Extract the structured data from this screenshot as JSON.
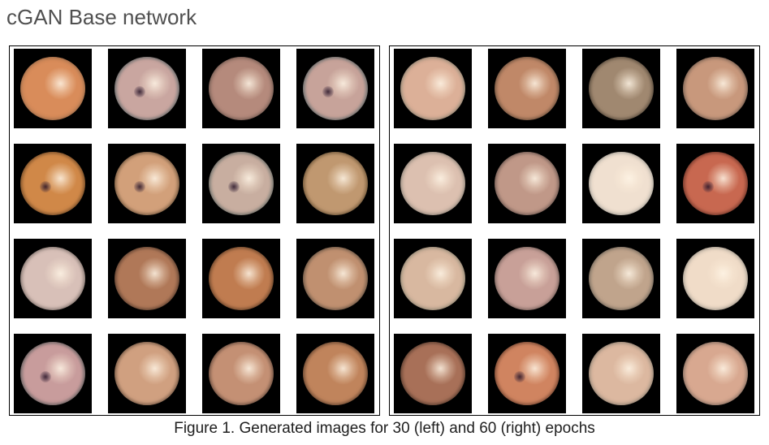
{
  "heading": "cGAN Base network",
  "caption": "Figure 1. Generated images for 30 (left) and 60 (right) epochs",
  "panels": [
    {
      "id": "left",
      "images": [
        {
          "tone": "#d98c5a",
          "rim": "#e0a070",
          "dark": false
        },
        {
          "tone": "#c9a6a0",
          "rim": "#6d8a8e",
          "dark": true
        },
        {
          "tone": "#b58a7c",
          "rim": "#9a7c70",
          "dark": false
        },
        {
          "tone": "#c7a39a",
          "rim": "#6b8e93",
          "dark": true
        },
        {
          "tone": "#d08848",
          "rim": "#8a5a30",
          "dark": true
        },
        {
          "tone": "#d2a07a",
          "rim": "#8a6a48",
          "dark": true
        },
        {
          "tone": "#c8aea0",
          "rim": "#7a8e8a",
          "dark": true
        },
        {
          "tone": "#c09870",
          "rim": "#8a6a40",
          "dark": false
        },
        {
          "tone": "#d8c0b8",
          "rim": "#a09088",
          "dark": false
        },
        {
          "tone": "#b07858",
          "rim": "#6a4a38",
          "dark": false
        },
        {
          "tone": "#c07c50",
          "rim": "#7a5030",
          "dark": false
        },
        {
          "tone": "#c09070",
          "rim": "#7a6a58",
          "dark": false
        },
        {
          "tone": "#c89c9c",
          "rim": "#6a7a7a",
          "dark": true
        },
        {
          "tone": "#d0a080",
          "rim": "#8a6850",
          "dark": false
        },
        {
          "tone": "#c49074",
          "rim": "#7a5a4a",
          "dark": false
        },
        {
          "tone": "#c0845c",
          "rim": "#7a5238",
          "dark": false
        }
      ]
    },
    {
      "id": "right",
      "images": [
        {
          "tone": "#dcb098",
          "rim": "#c0c0a8",
          "dark": false
        },
        {
          "tone": "#c08868",
          "rim": "#8a6a50",
          "dark": false
        },
        {
          "tone": "#a08870",
          "rim": "#6a5a48",
          "dark": false
        },
        {
          "tone": "#c8987c",
          "rim": "#9a8070",
          "dark": false
        },
        {
          "tone": "#dcc0b0",
          "rim": "#c8c0b0",
          "dark": false
        },
        {
          "tone": "#c09888",
          "rim": "#8a7068",
          "dark": false
        },
        {
          "tone": "#f0e0d0",
          "rim": "#f0ece0",
          "dark": false
        },
        {
          "tone": "#c86850",
          "rim": "#8a4030",
          "dark": true
        },
        {
          "tone": "#d8b8a0",
          "rim": "#c8c4a8",
          "dark": false
        },
        {
          "tone": "#c8a098",
          "rim": "#9a8078",
          "dark": false
        },
        {
          "tone": "#c0a48c",
          "rim": "#9a9080",
          "dark": false
        },
        {
          "tone": "#f0dcc8",
          "rim": "#e8e0d0",
          "dark": false
        },
        {
          "tone": "#a87058",
          "rim": "#6a4a38",
          "dark": false
        },
        {
          "tone": "#d08460",
          "rim": "#8a5038",
          "dark": true
        },
        {
          "tone": "#dcb8a0",
          "rim": "#c8bca8",
          "dark": false
        },
        {
          "tone": "#d8a890",
          "rim": "#b09888",
          "dark": false
        }
      ]
    }
  ]
}
